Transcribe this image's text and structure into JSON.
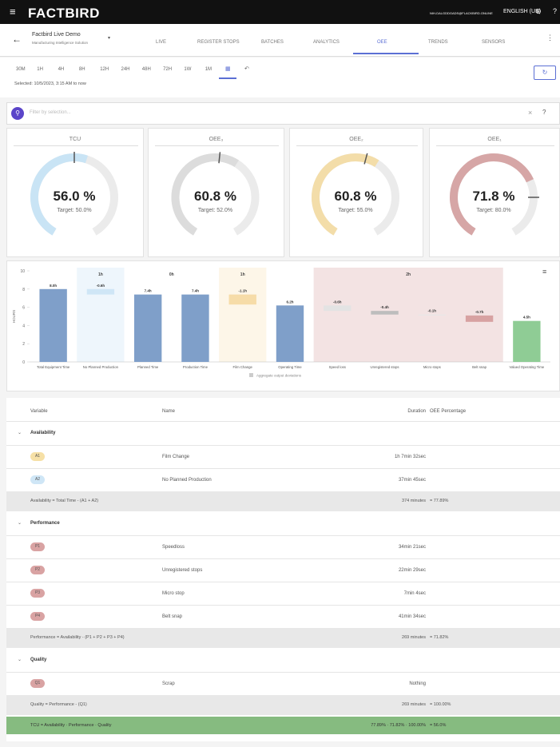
{
  "header": {
    "logo": "FACTBIRD",
    "email": "NIH-DALGDDGADS@FLACKBIRD.ONLINE",
    "language": "ENGLISH (US)"
  },
  "nav": {
    "title": "Factbird Live Demo",
    "subtitle": "Manufacturing Intelligence Solution",
    "tabs": [
      "LIVE",
      "REGISTER STOPS",
      "BATCHES",
      "ANALYTICS",
      "OEE",
      "TRENDS",
      "SENSORS"
    ],
    "active_tab": 4
  },
  "time_range": {
    "buttons": [
      "30M",
      "1H",
      "4H",
      "8H",
      "12H",
      "24H",
      "48H",
      "72H",
      "1W",
      "1M"
    ],
    "selected": "Selected: 10/5/2023, 3:15 AM to now"
  },
  "search": {
    "placeholder": "Filter by selection..."
  },
  "gauges": [
    {
      "title": "TCU",
      "value": 56.0,
      "value_label": "56.0 %",
      "target": 50.0,
      "target_label": "Target: 50.0%",
      "color": "#c9e4f5"
    },
    {
      "title": "OEE₃",
      "value": 60.8,
      "value_label": "60.8 %",
      "target": 52.0,
      "target_label": "Target: 52.0%",
      "color": "#dcdcdc"
    },
    {
      "title": "OEE₂",
      "value": 60.8,
      "value_label": "60.8 %",
      "target": 55.0,
      "target_label": "Target: 55.0%",
      "color": "#f3dda9"
    },
    {
      "title": "OEE₁",
      "value": 71.8,
      "value_label": "71.8 %",
      "target": 80.0,
      "target_label": "Target: 80.0%",
      "color": "#d6a6a6"
    }
  ],
  "chart_data": {
    "type": "waterfall",
    "categories": [
      "Total Equipment Time",
      "No Planned Production",
      "Planned Time",
      "Production Time",
      "Film Change",
      "Operating Time",
      "Speed loss",
      "Unregistered stops",
      "Micro stops",
      "Belt snap",
      "Valued Operating Time"
    ],
    "values": [
      8.0,
      -0.6,
      7.4,
      7.4,
      -1.1,
      6.2,
      -0.6,
      -0.4,
      -0.1,
      -0.7,
      4.5
    ],
    "value_labels": [
      "8.0h",
      "-0.6h",
      "7.4h",
      "7.4h",
      "-1.1h",
      "6.2h",
      "-0.6h",
      "-0.4h",
      "-0.1h",
      "-0.7h",
      "4.5h"
    ],
    "colors": [
      "#7f9fc9",
      "#cfe6f6",
      "#7f9fc9",
      "#7f9fc9",
      "#f6dca8",
      "#7f9fc9",
      "#e3e3e3",
      "#bdbdbd",
      "#e8e8e8",
      "#d7a2a2",
      "#8fcc95"
    ],
    "ylim": [
      0,
      10
    ],
    "yticks": [
      0,
      2,
      4,
      6,
      8,
      10
    ],
    "ylabel": "HOURS",
    "groups": [
      {
        "label": "1h",
        "from": 1,
        "to": 1,
        "color": "#eef6fc"
      },
      {
        "label": "0h",
        "from": 2,
        "to": 3,
        "color": "#ffffff"
      },
      {
        "label": "1h",
        "from": 4,
        "to": 4,
        "color": "#fdf6e8"
      },
      {
        "label": "2h",
        "from": 6,
        "to": 9,
        "color": "#f3e3e3"
      }
    ],
    "legend": "Aggregate output deviations"
  },
  "table": {
    "columns": [
      "Variable",
      "Name",
      "Duration",
      "OEE Percentage"
    ],
    "sections": [
      {
        "title": "Availability",
        "badge_colors": [
          "#f6e0a6",
          "#cfe6f6"
        ],
        "rows": [
          [
            "A1",
            "Film Change",
            "1h 7min 32sec"
          ],
          [
            "A2",
            "No Planned Production",
            "37min 45sec"
          ]
        ],
        "summary": [
          "Availability = Total Time - (A1 + A2)",
          "374 minutes",
          "= 77.89%"
        ]
      },
      {
        "title": "Performance",
        "badge_colors": [
          "#d9a3a3",
          "#d9a3a3",
          "#d9a3a3",
          "#d9a3a3"
        ],
        "rows": [
          [
            "P1",
            "Speedloss",
            "34min 21sec"
          ],
          [
            "P2",
            "Unregistered stops",
            "22min 29sec"
          ],
          [
            "P3",
            "Micro stop",
            "7min 4sec"
          ],
          [
            "P4",
            "Belt snap",
            "41min 34sec"
          ]
        ],
        "summary": [
          "Performance = Availability - (P1 + P2 + P3 + P4)",
          "269 minutes",
          "= 71.82%"
        ]
      },
      {
        "title": "Quality",
        "badge_colors": [
          "#d9a3a3"
        ],
        "rows": [
          [
            "Q1",
            "Scrap",
            "Nothing"
          ]
        ],
        "summary": [
          "Quality = Performance - (Q1)",
          "269 minutes",
          "= 100.00%"
        ]
      }
    ],
    "total": [
      "TCU = Availability · Performance · Quality",
      "77.89% · 71.82% · 100.00%",
      "= 56.0%"
    ]
  }
}
